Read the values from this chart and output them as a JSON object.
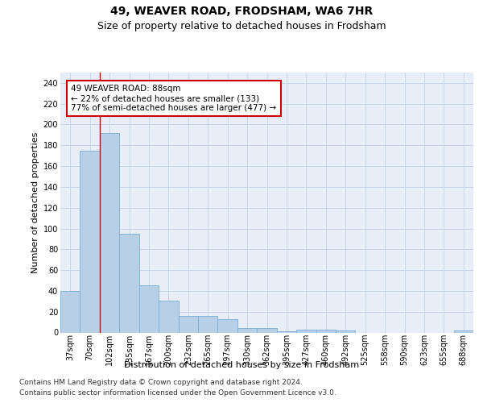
{
  "title": "49, WEAVER ROAD, FRODSHAM, WA6 7HR",
  "subtitle": "Size of property relative to detached houses in Frodsham",
  "xlabel": "Distribution of detached houses by size in Frodsham",
  "ylabel": "Number of detached properties",
  "footer_line1": "Contains HM Land Registry data © Crown copyright and database right 2024.",
  "footer_line2": "Contains public sector information licensed under the Open Government Licence v3.0.",
  "bar_labels": [
    "37sqm",
    "70sqm",
    "102sqm",
    "135sqm",
    "167sqm",
    "200sqm",
    "232sqm",
    "265sqm",
    "297sqm",
    "330sqm",
    "362sqm",
    "395sqm",
    "427sqm",
    "460sqm",
    "492sqm",
    "525sqm",
    "558sqm",
    "590sqm",
    "623sqm",
    "655sqm",
    "688sqm"
  ],
  "bar_values": [
    40,
    175,
    192,
    95,
    45,
    31,
    16,
    16,
    13,
    4,
    4,
    1,
    3,
    3,
    2,
    0,
    0,
    0,
    0,
    0,
    2
  ],
  "bar_color": "#b8cfe8",
  "bar_edgecolor": "#7aacd4",
  "red_line_x": 1.5,
  "annotation_line1": "49 WEAVER ROAD: 88sqm",
  "annotation_line2": "← 22% of detached houses are smaller (133)",
  "annotation_line3": "77% of semi-detached houses are larger (477) →",
  "ylim_max": 250,
  "yticks": [
    0,
    20,
    40,
    60,
    80,
    100,
    120,
    140,
    160,
    180,
    200,
    220,
    240
  ],
  "grid_color": "#c8d4e8",
  "background_color": "#e8eef8",
  "title_fontsize": 10,
  "subtitle_fontsize": 9,
  "label_fontsize": 8,
  "tick_fontsize": 7,
  "annot_fontsize": 7.5,
  "footer_fontsize": 6.5
}
